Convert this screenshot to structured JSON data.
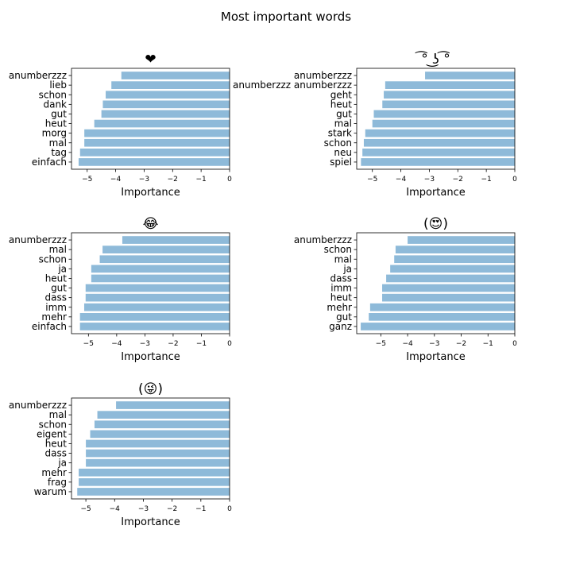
{
  "figure": {
    "title": "Most important words"
  },
  "chart_data": [
    {
      "type": "bar",
      "orientation": "horizontal",
      "title": "❤",
      "xlabel": "Importance",
      "ylabel": "",
      "xlim": [
        -5.55,
        0
      ],
      "xticks": [
        -5,
        -4,
        -3,
        -2,
        -1,
        0
      ],
      "xtick_labels": [
        "−5",
        "−4",
        "−3",
        "−2",
        "−1",
        "0"
      ],
      "categories": [
        "anumberzzz",
        "lieb",
        "schon",
        "dank",
        "gut",
        "heut",
        "morg",
        "mal",
        "tag",
        "einfach"
      ],
      "values": [
        -3.8,
        -4.15,
        -4.35,
        -4.45,
        -4.5,
        -4.75,
        -5.1,
        -5.1,
        -5.25,
        -5.3
      ],
      "bar_color": "#8ebad9",
      "grid": false,
      "legend": "none"
    },
    {
      "type": "bar",
      "orientation": "horizontal",
      "title": "͡° ͜ʖ ͡°",
      "xlabel": "Importance",
      "ylabel": "",
      "xlim": [
        -5.55,
        0
      ],
      "xticks": [
        -5,
        -4,
        -3,
        -2,
        -1,
        0
      ],
      "xtick_labels": [
        "−5",
        "−4",
        "−3",
        "−2",
        "−1",
        "0"
      ],
      "categories": [
        "anumberzzz",
        "anumberzzz anumberzzz",
        "geht",
        "heut",
        "gut",
        "mal",
        "stark",
        "schon",
        "neu",
        "spiel"
      ],
      "values": [
        -3.15,
        -4.55,
        -4.6,
        -4.65,
        -4.95,
        -5.0,
        -5.25,
        -5.3,
        -5.35,
        -5.4
      ],
      "bar_color": "#8ebad9",
      "grid": false,
      "legend": "none"
    },
    {
      "type": "bar",
      "orientation": "horizontal",
      "title": "😂",
      "xlabel": "Importance",
      "ylabel": "",
      "xlim": [
        -5.6,
        0
      ],
      "xticks": [
        -5,
        -4,
        -3,
        -2,
        -1,
        0
      ],
      "xtick_labels": [
        "−5",
        "−4",
        "−3",
        "−2",
        "−1",
        "0"
      ],
      "categories": [
        "anumberzzz",
        "mal",
        "schon",
        "ja",
        "heut",
        "gut",
        "dass",
        "imm",
        "mehr",
        "einfach"
      ],
      "values": [
        -3.8,
        -4.5,
        -4.6,
        -4.9,
        -4.9,
        -5.1,
        -5.1,
        -5.15,
        -5.3,
        -5.3
      ],
      "bar_color": "#8ebad9",
      "grid": false,
      "legend": "none"
    },
    {
      "type": "bar",
      "orientation": "horizontal",
      "title": "(😍)",
      "xlabel": "Importance",
      "ylabel": "",
      "xlim": [
        -5.9,
        0
      ],
      "xticks": [
        -5,
        -4,
        -3,
        -2,
        -1,
        0
      ],
      "xtick_labels": [
        "−5",
        "−4",
        "−3",
        "−2",
        "−1",
        "0"
      ],
      "categories": [
        "anumberzzz",
        "schon",
        "mal",
        "ja",
        "dass",
        "imm",
        "heut",
        "mehr",
        "gut",
        "ganz"
      ],
      "values": [
        -4.0,
        -4.45,
        -4.5,
        -4.65,
        -4.8,
        -4.95,
        -4.95,
        -5.4,
        -5.45,
        -5.75
      ],
      "bar_color": "#8ebad9",
      "grid": false,
      "legend": "none"
    },
    {
      "type": "bar",
      "orientation": "horizontal",
      "title": "(😜)",
      "xlabel": "Importance",
      "ylabel": "",
      "xlim": [
        -5.5,
        0
      ],
      "xticks": [
        -5,
        -4,
        -3,
        -2,
        -1,
        0
      ],
      "xtick_labels": [
        "−5",
        "−4",
        "−3",
        "−2",
        "−1",
        "0"
      ],
      "categories": [
        "anumberzzz",
        "mal",
        "schon",
        "eigent",
        "heut",
        "dass",
        "ja",
        "mehr",
        "frag",
        "warum"
      ],
      "values": [
        -3.95,
        -4.6,
        -4.7,
        -4.85,
        -5.0,
        -5.0,
        -5.0,
        -5.25,
        -5.25,
        -5.3
      ],
      "bar_color": "#8ebad9",
      "grid": false,
      "legend": "none"
    }
  ]
}
